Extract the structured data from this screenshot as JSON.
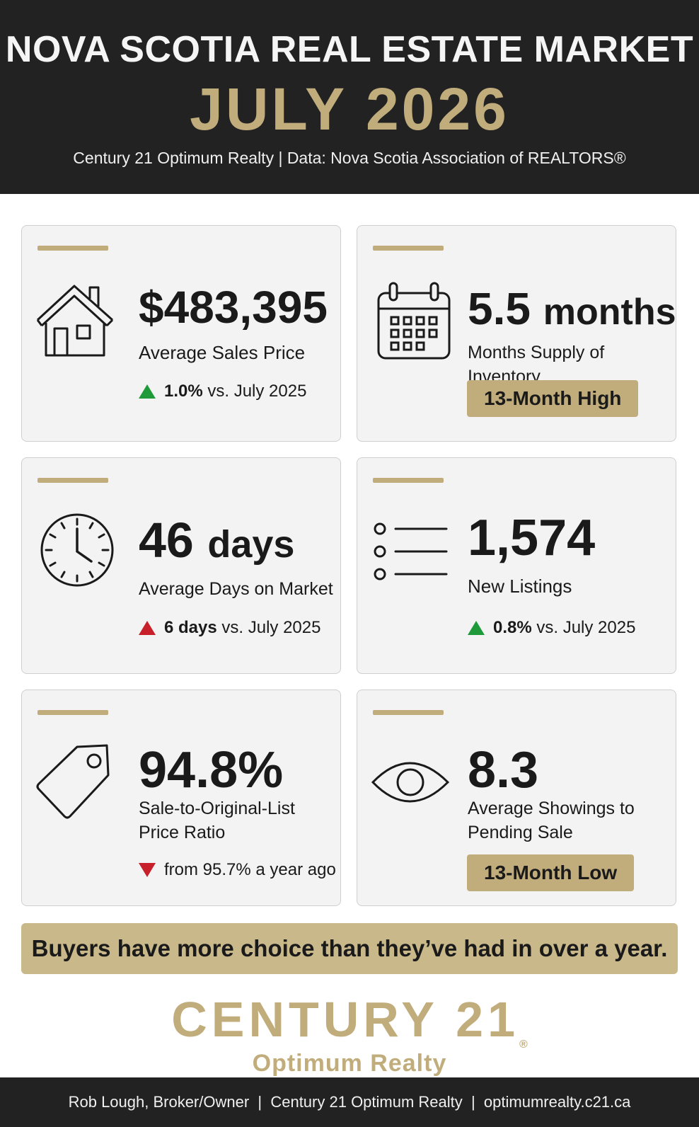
{
  "header": {
    "title": "NOVA SCOTIA REAL ESTATE MARKET",
    "month": "JULY 2026",
    "subtitle": "Century 21 Optimum Realty | Data: Nova Scotia Association of REALTORS®"
  },
  "colors": {
    "header_bg": "#222222",
    "accent_gold": "#c1ad7c",
    "up_green": "#1f9a3a",
    "alert_red": "#c8202a"
  },
  "cards": [
    {
      "icon": "house-icon",
      "value": "$483,395",
      "label": "Average Sales Price",
      "delta_value": "1.0%",
      "delta_text": "vs. July 2025",
      "direction": "up",
      "sentiment": "positive"
    },
    {
      "icon": "calendar-icon",
      "value_number": "5.5",
      "value_unit": "months",
      "label": "Months Supply of Inventory",
      "badge": "13-Month High"
    },
    {
      "icon": "clock-icon",
      "value_number": "46",
      "value_unit": "days",
      "label": "Average Days on Market",
      "delta_value": "6 days",
      "delta_text": "vs. July 2025",
      "direction": "up",
      "sentiment": "negative"
    },
    {
      "icon": "list-icon",
      "value": "1,574",
      "label": "New Listings",
      "delta_value": "0.8%",
      "delta_text": "vs. July 2025",
      "direction": "up",
      "sentiment": "positive"
    },
    {
      "icon": "price-tag-icon",
      "value": "94.8%",
      "label_line1": "Sale-to-Original-List",
      "label_line2": "Price Ratio",
      "delta_text": "from 95.7% a year ago",
      "direction": "down",
      "sentiment": "negative"
    },
    {
      "icon": "eye-icon",
      "value": "8.3",
      "label_line1": "Average Showings to",
      "label_line2": "Pending Sale",
      "badge": "13-Month Low"
    }
  ],
  "banner": "Buyers have more choice than they’ve had in over a year.",
  "logo": {
    "brand": "CENTURY 21",
    "registered": "®",
    "office": "Optimum Realty"
  },
  "footer": "Rob Lough, Broker/Owner  |  Century 21 Optimum Realty  |  optimumrealty.c21.ca"
}
